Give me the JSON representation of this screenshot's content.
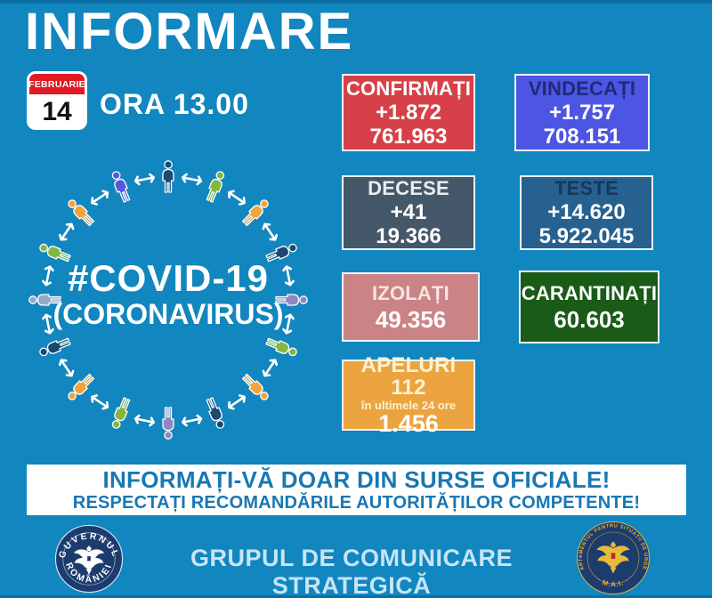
{
  "colors": {
    "background": "#1186bf",
    "edge": "#0d6ea4",
    "box_border": "#e8f4fb",
    "banner_text": "#1878b4",
    "footer_text": "#c8e4f4",
    "calendar_header_bg": "#e01b24",
    "arrow_color": "#ffffff"
  },
  "header": {
    "title": "INFORMARE",
    "calendar": {
      "month": "FEBRUARIE",
      "day": "14"
    },
    "time": "ORA 13.00"
  },
  "illustration": {
    "title": "#COVID-19",
    "subtitle": "(CORONAVIRUS)",
    "people_colors": [
      "#1c4970",
      "#83b741",
      "#f2a33c",
      "#1c4970",
      "#8d88bd",
      "#83b741",
      "#f2a33c",
      "#1c4970",
      "#8d88bd",
      "#83b741",
      "#f2a33c",
      "#1c4970",
      "#93a9c9",
      "#83b741",
      "#f2a33c",
      "#5a57dd"
    ]
  },
  "stats": {
    "confirmati": {
      "label": "CONFIRMAȚI",
      "delta": "+1.872",
      "total": "761.963",
      "bg": "#d64149",
      "label_color": "#ffffff"
    },
    "vindecati": {
      "label": "VINDECAȚI",
      "delta": "+1.757",
      "total": "708.151",
      "bg": "#4d55e3",
      "label_color": "#202a78"
    },
    "decese": {
      "label": "DECESE",
      "delta": "+41",
      "total": "19.366",
      "bg": "#45586a",
      "label_color": "#e9edf1"
    },
    "teste": {
      "label": "TESTE",
      "delta": "+14.620",
      "total": "5.922.045",
      "bg": "#27618f",
      "label_color": "#16385c"
    },
    "izolati": {
      "label": "IZOLAȚI",
      "total": "49.356",
      "bg": "#cc8385",
      "label_color": "#f7e4e4"
    },
    "carantinati": {
      "label": "CARANTINAȚI",
      "total": "60.603",
      "bg": "#1a5b17",
      "label_color": "#ffffff"
    },
    "apeluri": {
      "label": "APELURI 112",
      "sub": "în ultimele 24 ore",
      "total": "1.456",
      "bg": "#eba440",
      "label_color": "#fcf1d1"
    }
  },
  "banner": {
    "line1": "INFORMAȚI-VĂ DOAR DIN SURSE OFICIALE!",
    "line2": "RESPECTAȚI RECOMANDĂRILE AUTORITĂȚILOR COMPETENTE!"
  },
  "footer": {
    "title": "GRUPUL DE COMUNICARE STRATEGICĂ",
    "left_logo": {
      "top_text": "GUVERNUL",
      "bottom_text": "ROMÂNIEI"
    },
    "right_logo": {
      "ring_text": "DEPARTAMENTUL PENTRU SITUAȚII DE URGENȚĂ",
      "bottom_text": "· M.A.I. ·"
    }
  },
  "chart_data": {
    "type": "table",
    "title": "INFORMARE — FEBRUARIE 14, ORA 13.00",
    "categories": [
      "CONFIRMAȚI",
      "VINDECAȚI",
      "DECESE",
      "TESTE",
      "IZOLAȚI",
      "CARANTINAȚI",
      "APELURI 112 (în ultimele 24 ore)"
    ],
    "series": [
      {
        "name": "delta_24h",
        "values": [
          1872,
          1757,
          41,
          14620,
          null,
          null,
          1456
        ]
      },
      {
        "name": "total",
        "values": [
          761963,
          708151,
          19366,
          5922045,
          49356,
          60603,
          null
        ]
      }
    ]
  }
}
